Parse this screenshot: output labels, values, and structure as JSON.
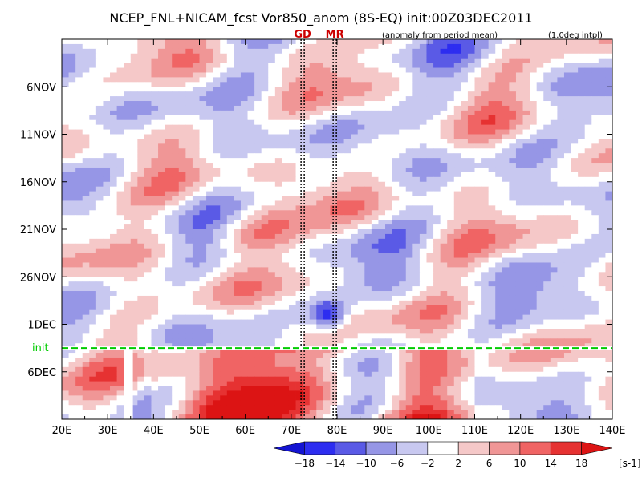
{
  "chart_data": {
    "type": "heatmap",
    "title": "NCEP_FNL+NICAM_fcst Vor850_anom (8S-EQ) init:00Z03DEC2011",
    "subtitle_left": "(anomaly from period mean)",
    "subtitle_right": "(1.0deg intpl)",
    "x_axis": {
      "range": [
        20,
        140
      ],
      "ticks": [
        20,
        30,
        40,
        50,
        60,
        70,
        80,
        90,
        100,
        110,
        120,
        130,
        140
      ],
      "tick_labels": [
        "20E",
        "30E",
        "40E",
        "50E",
        "60E",
        "70E",
        "80E",
        "90E",
        "100E",
        "110E",
        "120E",
        "130E",
        "140E"
      ]
    },
    "y_axis": {
      "range_days_from_top": [
        0,
        40
      ],
      "ticks": [
        {
          "label": "6NOV",
          "day": 5
        },
        {
          "label": "11NOV",
          "day": 10
        },
        {
          "label": "16NOV",
          "day": 15
        },
        {
          "label": "21NOV",
          "day": 20
        },
        {
          "label": "26NOV",
          "day": 25
        },
        {
          "label": "1DEC",
          "day": 30
        },
        {
          "label": "6DEC",
          "day": 35
        }
      ]
    },
    "markers": [
      {
        "label": "GD",
        "lon": 72.5
      },
      {
        "label": "MR",
        "lon": 79.5
      }
    ],
    "init_line": {
      "label": "init",
      "day": 32.5
    },
    "colorbar": {
      "levels": [
        -18,
        -14,
        -10,
        -6,
        -2,
        2,
        6,
        10,
        14,
        18
      ],
      "level_labels": [
        "−18",
        "−14",
        "−10",
        "−6",
        "−2",
        "2",
        "6",
        "10",
        "14",
        "18"
      ],
      "colors": [
        "#1414d2",
        "#2d2df0",
        "#5a5ae6",
        "#9696e6",
        "#c8c8f0",
        "#ffffff",
        "#f5c8c8",
        "#f09696",
        "#f06464",
        "#e63232",
        "#dc1414"
      ],
      "unit": "[s-1]"
    },
    "missing_band_lon": [
      33.5,
      35.5
    ],
    "colors": {
      "green_init": "#00cc00",
      "marker_red": "#cc0000"
    }
  }
}
